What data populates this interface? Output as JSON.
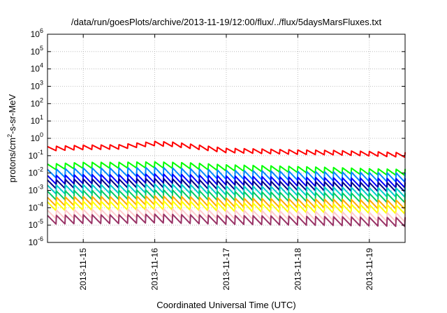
{
  "chart_data": {
    "type": "line",
    "title": "/data/run/goesPlots/archive/2013-11-19/12:00/flux/../flux/5daysMarsFluxes.txt",
    "xlabel": "Coordinated Universal Time (UTC)",
    "ylabel": {
      "base": "protons/cm",
      "sup": "2",
      "rest": "-s-sr-MeV"
    },
    "yscale": "log",
    "ylim": [
      1e-06,
      1000000.0
    ],
    "y_ticks": [
      {
        "base": "10",
        "exp": "-6"
      },
      {
        "base": "10",
        "exp": "-5"
      },
      {
        "base": "10",
        "exp": "-4"
      },
      {
        "base": "10",
        "exp": "-3"
      },
      {
        "base": "10",
        "exp": "-2"
      },
      {
        "base": "10",
        "exp": "-1"
      },
      {
        "base": "10",
        "exp": "0"
      },
      {
        "base": "10",
        "exp": "1"
      },
      {
        "base": "10",
        "exp": "2"
      },
      {
        "base": "10",
        "exp": "3"
      },
      {
        "base": "10",
        "exp": "4"
      },
      {
        "base": "10",
        "exp": "5"
      },
      {
        "base": "10",
        "exp": "6"
      }
    ],
    "xlim": [
      "2013-11-14T12:00",
      "2013-11-19T12:00"
    ],
    "x_ticks": [
      "2013-11-15",
      "2013-11-16",
      "2013-11-17",
      "2013-11-18",
      "2013-11-19"
    ],
    "grid": true,
    "sawtooth_period_hours": 3,
    "series": [
      {
        "color": "#ff0000",
        "values": [
          [
            "2013-11-14T12:00",
            0.25
          ],
          [
            "2013-11-15T00:00",
            0.3
          ],
          [
            "2013-11-15T12:00",
            0.32
          ],
          [
            "2013-11-16T00:00",
            0.5
          ],
          [
            "2013-11-16T06:00",
            0.45
          ],
          [
            "2013-11-16T12:00",
            0.35
          ],
          [
            "2013-11-17T00:00",
            0.2
          ],
          [
            "2013-11-17T12:00",
            0.18
          ],
          [
            "2013-11-18T00:00",
            0.16
          ],
          [
            "2013-11-18T12:00",
            0.15
          ],
          [
            "2013-11-19T00:00",
            0.13
          ],
          [
            "2013-11-19T12:00",
            0.11
          ]
        ]
      },
      {
        "color": "#00ff00",
        "values": [
          [
            "2013-11-14T12:00",
            0.022
          ],
          [
            "2013-11-15T00:00",
            0.028
          ],
          [
            "2013-11-15T12:00",
            0.028
          ],
          [
            "2013-11-16T00:00",
            0.03
          ],
          [
            "2013-11-16T12:00",
            0.026
          ],
          [
            "2013-11-17T00:00",
            0.02
          ],
          [
            "2013-11-17T12:00",
            0.018
          ],
          [
            "2013-11-18T00:00",
            0.016
          ],
          [
            "2013-11-18T12:00",
            0.014
          ],
          [
            "2013-11-19T00:00",
            0.012
          ],
          [
            "2013-11-19T12:00",
            0.011
          ]
        ]
      },
      {
        "color": "#0088ff",
        "values": [
          [
            "2013-11-14T12:00",
            0.009
          ],
          [
            "2013-11-15T00:00",
            0.011
          ],
          [
            "2013-11-15T12:00",
            0.011
          ],
          [
            "2013-11-16T00:00",
            0.012
          ],
          [
            "2013-11-16T12:00",
            0.01
          ],
          [
            "2013-11-17T00:00",
            0.008
          ],
          [
            "2013-11-17T12:00",
            0.0075
          ],
          [
            "2013-11-18T00:00",
            0.007
          ],
          [
            "2013-11-18T12:00",
            0.0065
          ],
          [
            "2013-11-19T00:00",
            0.006
          ],
          [
            "2013-11-19T12:00",
            0.0055
          ]
        ]
      },
      {
        "color": "#0000ff",
        "values": [
          [
            "2013-11-14T12:00",
            0.004
          ],
          [
            "2013-11-15T00:00",
            0.0045
          ],
          [
            "2013-11-15T12:00",
            0.0045
          ],
          [
            "2013-11-16T00:00",
            0.005
          ],
          [
            "2013-11-16T12:00",
            0.0045
          ],
          [
            "2013-11-17T00:00",
            0.0038
          ],
          [
            "2013-11-17T12:00",
            0.0035
          ],
          [
            "2013-11-18T00:00",
            0.0032
          ],
          [
            "2013-11-18T12:00",
            0.003
          ],
          [
            "2013-11-19T00:00",
            0.0028
          ],
          [
            "2013-11-19T12:00",
            0.0026
          ]
        ]
      },
      {
        "color": "#000088",
        "values": [
          [
            "2013-11-14T12:00",
            0.0022
          ],
          [
            "2013-11-15T00:00",
            0.0025
          ],
          [
            "2013-11-15T12:00",
            0.0025
          ],
          [
            "2013-11-16T00:00",
            0.0027
          ],
          [
            "2013-11-16T12:00",
            0.0024
          ],
          [
            "2013-11-17T00:00",
            0.002
          ],
          [
            "2013-11-17T12:00",
            0.0019
          ],
          [
            "2013-11-18T00:00",
            0.0018
          ],
          [
            "2013-11-18T12:00",
            0.0017
          ],
          [
            "2013-11-19T00:00",
            0.0016
          ],
          [
            "2013-11-19T12:00",
            0.0015
          ]
        ]
      },
      {
        "color": "#00cccc",
        "values": [
          [
            "2013-11-14T12:00",
            0.0011
          ],
          [
            "2013-11-15T00:00",
            0.0012
          ],
          [
            "2013-11-15T12:00",
            0.0012
          ],
          [
            "2013-11-16T00:00",
            0.0013
          ],
          [
            "2013-11-16T12:00",
            0.0012
          ],
          [
            "2013-11-17T00:00",
            0.001
          ],
          [
            "2013-11-17T12:00",
            0.00095
          ],
          [
            "2013-11-18T00:00",
            0.0009
          ],
          [
            "2013-11-18T12:00",
            0.00085
          ],
          [
            "2013-11-19T00:00",
            0.0008
          ],
          [
            "2013-11-19T12:00",
            0.00075
          ]
        ]
      },
      {
        "color": "#00cc66",
        "values": [
          [
            "2013-11-14T12:00",
            0.0005
          ],
          [
            "2013-11-15T00:00",
            0.00055
          ],
          [
            "2013-11-15T12:00",
            0.00055
          ],
          [
            "2013-11-16T00:00",
            0.0006
          ],
          [
            "2013-11-16T12:00",
            0.00055
          ],
          [
            "2013-11-17T00:00",
            0.00048
          ],
          [
            "2013-11-17T12:00",
            0.00045
          ],
          [
            "2013-11-18T00:00",
            0.00042
          ],
          [
            "2013-11-18T12:00",
            0.0004
          ],
          [
            "2013-11-19T00:00",
            0.00038
          ],
          [
            "2013-11-19T12:00",
            0.00036
          ]
        ]
      },
      {
        "color": "#ffaa00",
        "values": [
          [
            "2013-11-14T12:00",
            0.00022
          ],
          [
            "2013-11-15T00:00",
            0.00025
          ],
          [
            "2013-11-15T12:00",
            0.00025
          ],
          [
            "2013-11-16T00:00",
            0.00027
          ],
          [
            "2013-11-16T12:00",
            0.00024
          ],
          [
            "2013-11-17T00:00",
            0.0002
          ],
          [
            "2013-11-17T12:00",
            0.00019
          ],
          [
            "2013-11-18T00:00",
            0.00018
          ],
          [
            "2013-11-18T12:00",
            0.00017
          ],
          [
            "2013-11-19T00:00",
            0.00016
          ],
          [
            "2013-11-19T12:00",
            0.00015
          ]
        ]
      },
      {
        "color": "#ffff00",
        "values": [
          [
            "2013-11-14T12:00",
            0.00012
          ],
          [
            "2013-11-15T00:00",
            0.00013
          ],
          [
            "2013-11-15T12:00",
            0.00013
          ],
          [
            "2013-11-16T00:00",
            0.00014
          ],
          [
            "2013-11-16T12:00",
            0.00013
          ],
          [
            "2013-11-17T00:00",
            0.00011
          ],
          [
            "2013-11-17T12:00",
            0.0001
          ],
          [
            "2013-11-18T00:00",
            9.5e-05
          ],
          [
            "2013-11-18T12:00",
            9e-05
          ],
          [
            "2013-11-19T00:00",
            8.5e-05
          ],
          [
            "2013-11-19T12:00",
            8e-05
          ]
        ]
      },
      {
        "color": "#ffcccc",
        "values": [
          [
            "2013-11-14T12:00",
            4e-05
          ],
          [
            "2013-11-15T00:00",
            4.5e-05
          ],
          [
            "2013-11-15T12:00",
            4.5e-05
          ],
          [
            "2013-11-16T00:00",
            5e-05
          ],
          [
            "2013-11-16T12:00",
            4.5e-05
          ],
          [
            "2013-11-17T00:00",
            4e-05
          ],
          [
            "2013-11-17T12:00",
            3.8e-05
          ],
          [
            "2013-11-18T00:00",
            3.5e-05
          ],
          [
            "2013-11-18T12:00",
            3.3e-05
          ],
          [
            "2013-11-19T00:00",
            3e-05
          ],
          [
            "2013-11-19T12:00",
            2.8e-05
          ]
        ]
      },
      {
        "color": "#993366",
        "values": [
          [
            "2013-11-14T12:00",
            2e-05
          ],
          [
            "2013-11-15T00:00",
            2.2e-05
          ],
          [
            "2013-11-15T12:00",
            2.2e-05
          ],
          [
            "2013-11-16T00:00",
            2.4e-05
          ],
          [
            "2013-11-16T12:00",
            2.2e-05
          ],
          [
            "2013-11-17T00:00",
            2e-05
          ],
          [
            "2013-11-17T12:00",
            1.9e-05
          ],
          [
            "2013-11-18T00:00",
            1.8e-05
          ],
          [
            "2013-11-18T12:00",
            1.7e-05
          ],
          [
            "2013-11-19T00:00",
            1.6e-05
          ],
          [
            "2013-11-19T12:00",
            1.5e-05
          ]
        ]
      }
    ]
  }
}
